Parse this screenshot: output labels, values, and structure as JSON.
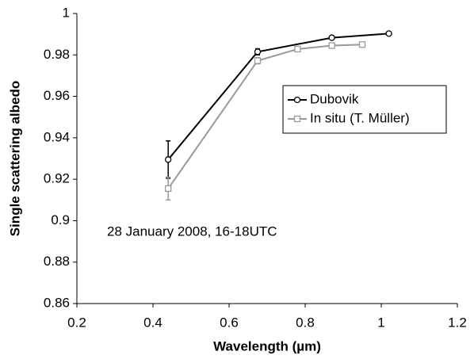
{
  "chart_data": {
    "type": "line",
    "x_label": "Wavelength (µm)",
    "y_label": "Single scattering albedo",
    "annotation": "28 January 2008, 16-18UTC",
    "xlim": [
      0.2,
      1.2
    ],
    "xticks": [
      0.2,
      0.4,
      0.6,
      0.8,
      1,
      1.2
    ],
    "ylim": [
      0.86,
      1
    ],
    "yticks": [
      0.86,
      0.88,
      0.9,
      0.92,
      0.94,
      0.96,
      0.98,
      1
    ],
    "legend": "upper right",
    "series": [
      {
        "name": "Dubovik",
        "color": "#000000",
        "marker": "circle",
        "x": [
          0.44,
          0.675,
          0.87,
          1.02
        ],
        "values": [
          0.9295,
          0.9815,
          0.9883,
          0.9903
        ],
        "errors": [
          0.009,
          0.0015,
          0.0007,
          0.0007
        ]
      },
      {
        "name": "In situ (T. Müller)",
        "color": "#999999",
        "marker": "square",
        "x": [
          0.44,
          0.675,
          0.78,
          0.87,
          0.95
        ],
        "values": [
          0.9155,
          0.9772,
          0.9828,
          0.9845,
          0.985
        ],
        "errors": [
          0.0055,
          0.0015,
          0.001,
          0.001,
          0.001
        ]
      }
    ]
  }
}
